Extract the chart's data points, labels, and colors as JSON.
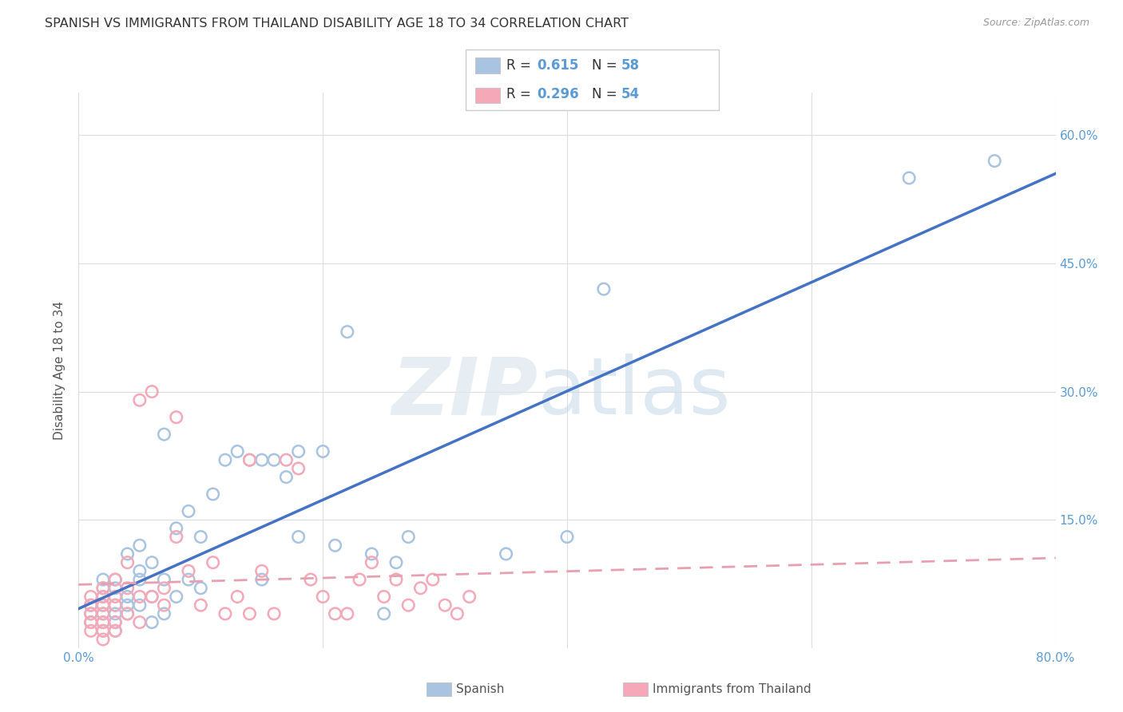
{
  "title": "SPANISH VS IMMIGRANTS FROM THAILAND DISABILITY AGE 18 TO 34 CORRELATION CHART",
  "source": "Source: ZipAtlas.com",
  "ylabel": "Disability Age 18 to 34",
  "xlim": [
    0,
    0.8
  ],
  "ylim": [
    0,
    0.65
  ],
  "blue_color": "#a8c4e0",
  "pink_color": "#f4a8b8",
  "line_blue": "#4472c4",
  "line_pink": "#e8a0b0",
  "background": "#ffffff",
  "spanish_x": [
    0.01,
    0.01,
    0.01,
    0.02,
    0.02,
    0.02,
    0.02,
    0.02,
    0.02,
    0.02,
    0.03,
    0.03,
    0.03,
    0.03,
    0.03,
    0.03,
    0.04,
    0.04,
    0.04,
    0.04,
    0.05,
    0.05,
    0.05,
    0.05,
    0.06,
    0.06,
    0.06,
    0.07,
    0.07,
    0.07,
    0.08,
    0.08,
    0.09,
    0.09,
    0.1,
    0.1,
    0.11,
    0.12,
    0.13,
    0.14,
    0.15,
    0.15,
    0.16,
    0.17,
    0.18,
    0.18,
    0.2,
    0.21,
    0.22,
    0.24,
    0.25,
    0.26,
    0.27,
    0.35,
    0.4,
    0.43,
    0.68,
    0.75
  ],
  "spanish_y": [
    0.03,
    0.04,
    0.05,
    0.02,
    0.03,
    0.04,
    0.05,
    0.06,
    0.07,
    0.08,
    0.02,
    0.03,
    0.04,
    0.05,
    0.07,
    0.08,
    0.04,
    0.05,
    0.06,
    0.11,
    0.05,
    0.08,
    0.09,
    0.12,
    0.03,
    0.06,
    0.1,
    0.04,
    0.08,
    0.25,
    0.06,
    0.14,
    0.08,
    0.16,
    0.07,
    0.13,
    0.18,
    0.22,
    0.23,
    0.22,
    0.08,
    0.22,
    0.22,
    0.2,
    0.23,
    0.13,
    0.23,
    0.12,
    0.37,
    0.11,
    0.04,
    0.1,
    0.13,
    0.11,
    0.13,
    0.42,
    0.55,
    0.57
  ],
  "thai_x": [
    0.01,
    0.01,
    0.01,
    0.01,
    0.01,
    0.02,
    0.02,
    0.02,
    0.02,
    0.02,
    0.02,
    0.02,
    0.03,
    0.03,
    0.03,
    0.03,
    0.03,
    0.04,
    0.04,
    0.04,
    0.05,
    0.05,
    0.05,
    0.06,
    0.06,
    0.07,
    0.07,
    0.08,
    0.08,
    0.09,
    0.1,
    0.11,
    0.12,
    0.13,
    0.14,
    0.14,
    0.15,
    0.16,
    0.17,
    0.18,
    0.19,
    0.2,
    0.21,
    0.22,
    0.23,
    0.24,
    0.25,
    0.26,
    0.27,
    0.28,
    0.29,
    0.3,
    0.31,
    0.32
  ],
  "thai_y": [
    0.02,
    0.03,
    0.04,
    0.05,
    0.06,
    0.01,
    0.02,
    0.03,
    0.04,
    0.05,
    0.06,
    0.07,
    0.02,
    0.03,
    0.05,
    0.06,
    0.08,
    0.04,
    0.07,
    0.1,
    0.03,
    0.06,
    0.29,
    0.06,
    0.3,
    0.05,
    0.07,
    0.13,
    0.27,
    0.09,
    0.05,
    0.1,
    0.04,
    0.06,
    0.04,
    0.22,
    0.09,
    0.04,
    0.22,
    0.21,
    0.08,
    0.06,
    0.04,
    0.04,
    0.08,
    0.1,
    0.06,
    0.08,
    0.05,
    0.07,
    0.08,
    0.05,
    0.04,
    0.06
  ]
}
